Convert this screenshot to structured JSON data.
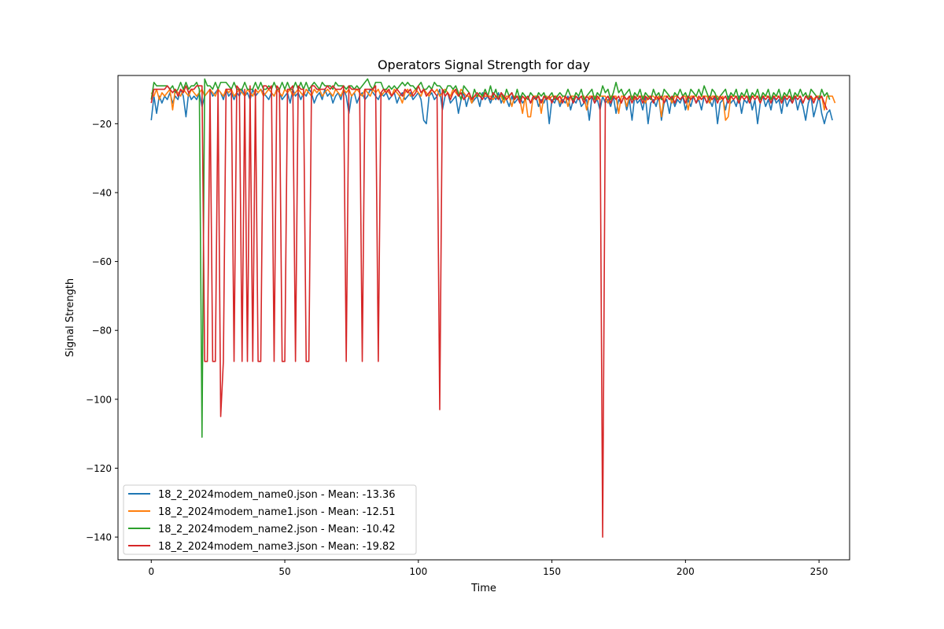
{
  "chart_data": {
    "type": "line",
    "title": "Operators Signal Strength for day",
    "xlabel": "Time",
    "ylabel": "Signal Strength",
    "xlim": [
      -12.45,
      261.45
    ],
    "ylim": [
      -146.6,
      -6.0
    ],
    "xticks": [
      0,
      50,
      100,
      150,
      200,
      250
    ],
    "yticks": [
      -140,
      -120,
      -100,
      -80,
      -60,
      -40,
      -20
    ],
    "grid": false,
    "legend_position": "lower-left",
    "series": [
      {
        "name": "18_2_2024modem_name0.json - Mean: -13.36",
        "color": "#1f77b4",
        "values": [
          -19,
          -12,
          -17,
          -12,
          -14,
          -12,
          -13,
          -11,
          -14,
          -12,
          -13,
          -10,
          -12,
          -18,
          -11,
          -13,
          -12,
          -13,
          -11,
          -15,
          -12,
          -11,
          -10,
          -12,
          -11,
          -10,
          -11,
          -13,
          -10,
          -12,
          -11,
          -13,
          -11,
          -12,
          -10,
          -12,
          -11,
          -13,
          -10,
          -12,
          -11,
          -10,
          -11,
          -12,
          -13,
          -11,
          -12,
          -10,
          -11,
          -13,
          -12,
          -11,
          -14,
          -10,
          -12,
          -11,
          -13,
          -11,
          -12,
          -10,
          -11,
          -14,
          -12,
          -11,
          -13,
          -10,
          -12,
          -11,
          -14,
          -12,
          -11,
          -13,
          -10,
          -12,
          -17,
          -12,
          -11,
          -14,
          -12,
          -11,
          -13,
          -12,
          -10,
          -11,
          -12,
          -13,
          -11,
          -12,
          -11,
          -13,
          -12,
          -11,
          -14,
          -12,
          -11,
          -13,
          -12,
          -11,
          -13,
          -12,
          -11,
          -13,
          -19,
          -20,
          -12,
          -11,
          -13,
          -12,
          -10,
          -16,
          -12,
          -11,
          -14,
          -13,
          -12,
          -17,
          -13,
          -11,
          -15,
          -12,
          -14,
          -13,
          -12,
          -15,
          -11,
          -13,
          -12,
          -14,
          -12,
          -13,
          -11,
          -14,
          -12,
          -13,
          -15,
          -12,
          -14,
          -13,
          -12,
          -14,
          -13,
          -12,
          -14,
          -13,
          -12,
          -15,
          -13,
          -14,
          -12,
          -20,
          -13,
          -14,
          -12,
          -15,
          -13,
          -14,
          -12,
          -16,
          -13,
          -14,
          -12,
          -15,
          -14,
          -13,
          -19,
          -12,
          -14,
          -13,
          -16,
          -12,
          -14,
          -13,
          -15,
          -12,
          -17,
          -13,
          -14,
          -12,
          -16,
          -13,
          -19,
          -12,
          -14,
          -13,
          -16,
          -12,
          -20,
          -14,
          -13,
          -15,
          -12,
          -19,
          -14,
          -13,
          -17,
          -12,
          -15,
          -13,
          -14,
          -12,
          -16,
          -13,
          -15,
          -12,
          -14,
          -13,
          -16,
          -12,
          -14,
          -13,
          -15,
          -12,
          -20,
          -14,
          -13,
          -16,
          -12,
          -14,
          -13,
          -15,
          -12,
          -17,
          -13,
          -14,
          -12,
          -16,
          -13,
          -20,
          -14,
          -12,
          -15,
          -13,
          -16,
          -12,
          -14,
          -13,
          -17,
          -12,
          -15,
          -13,
          -14,
          -12,
          -16,
          -13,
          -15,
          -19,
          -14,
          -12,
          -18,
          -15,
          -12,
          -17,
          -20,
          -17,
          -16,
          -19
        ]
      },
      {
        "name": "18_2_2024modem_name1.json - Mean: -12.51",
        "color": "#ff7f0e",
        "values": [
          -11,
          -12,
          -10,
          -13,
          -11,
          -12,
          -11,
          -10,
          -16,
          -10,
          -11,
          -12,
          -10,
          -11,
          -12,
          -10,
          -11,
          -12,
          -11,
          -10,
          -12,
          -11,
          -10,
          -11,
          -12,
          -10,
          -11,
          -12,
          -10,
          -11,
          -10,
          -12,
          -11,
          -10,
          -11,
          -12,
          -10,
          -11,
          -12,
          -10,
          -11,
          -10,
          -12,
          -11,
          -10,
          -11,
          -12,
          -10,
          -11,
          -12,
          -10,
          -11,
          -10,
          -12,
          -11,
          -10,
          -11,
          -12,
          -10,
          -11,
          -12,
          -10,
          -11,
          -10,
          -12,
          -11,
          -10,
          -11,
          -12,
          -10,
          -11,
          -12,
          -10,
          -11,
          -10,
          -12,
          -11,
          -10,
          -11,
          -12,
          -10,
          -11,
          -12,
          -10,
          -11,
          -10,
          -12,
          -11,
          -10,
          -11,
          -12,
          -10,
          -11,
          -12,
          -14,
          -11,
          -10,
          -12,
          -11,
          -10,
          -11,
          -12,
          -10,
          -11,
          -12,
          -10,
          -11,
          -10,
          -12,
          -11,
          -10,
          -11,
          -12,
          -10,
          -11,
          -12,
          -10,
          -11,
          -12,
          -12,
          -14,
          -12,
          -12,
          -12,
          -12,
          -12,
          -12,
          -12,
          -13,
          -12,
          -12,
          -12,
          -14,
          -12,
          -12,
          -15,
          -12,
          -12,
          -13,
          -17,
          -12,
          -18,
          -18,
          -12,
          -12,
          -12,
          -17,
          -12,
          -12,
          -13,
          -12,
          -12,
          -12,
          -14,
          -12,
          -12,
          -15,
          -12,
          -12,
          -12,
          -13,
          -12,
          -12,
          -16,
          -12,
          -12,
          -12,
          -13,
          -12,
          -12,
          -12,
          -14,
          -12,
          -12,
          -12,
          -17,
          -12,
          -12,
          -15,
          -12,
          -12,
          -13,
          -12,
          -12,
          -12,
          -14,
          -12,
          -12,
          -12,
          -13,
          -12,
          -18,
          -12,
          -12,
          -12,
          -14,
          -12,
          -12,
          -13,
          -12,
          -12,
          -16,
          -12,
          -12,
          -12,
          -13,
          -12,
          -12,
          -12,
          -14,
          -12,
          -12,
          -12,
          -13,
          -12,
          -19,
          -18,
          -12,
          -12,
          -12,
          -14,
          -12,
          -12,
          -12,
          -13,
          -12,
          -12,
          -12,
          -14,
          -12,
          -12,
          -12,
          -13,
          -12,
          -12,
          -12,
          -14,
          -12,
          -12,
          -12,
          -13,
          -12,
          -12,
          -12,
          -14,
          -12,
          -12,
          -12,
          -13,
          -12,
          -12,
          -12,
          -16,
          -12,
          -12,
          -12,
          -14
        ]
      },
      {
        "name": "18_2_2024modem_name2.json - Mean: -10.42",
        "color": "#2ca02c",
        "values": [
          -13,
          -8,
          -9,
          -9,
          -9,
          -9,
          -9,
          -10,
          -9,
          -11,
          -10,
          -8,
          -10,
          -8,
          -10,
          -9,
          -9,
          -8,
          -10,
          -111,
          -7,
          -9,
          -9,
          -10,
          -8,
          -10,
          -8,
          -8,
          -8,
          -9,
          -10,
          -8,
          -10,
          -10,
          -10,
          -8,
          -10,
          -10,
          -10,
          -8,
          -10,
          -8,
          -10,
          -10,
          -9,
          -10,
          -8,
          -10,
          -10,
          -8,
          -10,
          -8,
          -10,
          -10,
          -8,
          -10,
          -8,
          -10,
          -8,
          -10,
          -9,
          -8,
          -9,
          -10,
          -8,
          -9,
          -9,
          -9,
          -10,
          -8,
          -9,
          -9,
          -9,
          -10,
          -9,
          -9,
          -10,
          -9,
          -10,
          -9,
          -8,
          -7,
          -9,
          -10,
          -8,
          -8,
          -8,
          -10,
          -10,
          -9,
          -10,
          -9,
          -10,
          -9,
          -8,
          -9,
          -8,
          -9,
          -9,
          -10,
          -9,
          -8,
          -10,
          -10,
          -9,
          -10,
          -8,
          -9,
          -9,
          -10,
          -11,
          -9,
          -9,
          -10,
          -9,
          -11,
          -13,
          -9,
          -10,
          -11,
          -13,
          -10,
          -12,
          -11,
          -12,
          -10,
          -12,
          -9,
          -12,
          -10,
          -13,
          -11,
          -13,
          -10,
          -12,
          -11,
          -13,
          -10,
          -13,
          -11,
          -12,
          -13,
          -11,
          -12,
          -13,
          -11,
          -12,
          -11,
          -13,
          -12,
          -11,
          -13,
          -12,
          -11,
          -12,
          -12,
          -10,
          -12,
          -13,
          -11,
          -12,
          -10,
          -13,
          -12,
          -11,
          -10,
          -13,
          -11,
          -12,
          -9,
          -11,
          -10,
          -13,
          -11,
          -8,
          -11,
          -10,
          -12,
          -11,
          -10,
          -13,
          -11,
          -12,
          -10,
          -13,
          -11,
          -12,
          -13,
          -10,
          -12,
          -11,
          -13,
          -10,
          -11,
          -12,
          -13,
          -11,
          -12,
          -10,
          -12,
          -11,
          -13,
          -10,
          -11,
          -12,
          -10,
          -12,
          -9,
          -11,
          -13,
          -10,
          -11,
          -13,
          -12,
          -11,
          -10,
          -13,
          -11,
          -12,
          -10,
          -13,
          -11,
          -12,
          -10,
          -13,
          -11,
          -12,
          -10,
          -13,
          -11,
          -12,
          -10,
          -13,
          -11,
          -12,
          -10,
          -13,
          -11,
          -12,
          -10,
          -13,
          -11,
          -12,
          -10,
          -12,
          -11,
          -13,
          -10,
          -11,
          -12,
          -13,
          -10,
          -12,
          -11,
          -13
        ]
      },
      {
        "name": "18_2_2024modem_name3.json - Mean: -19.82",
        "color": "#d62728",
        "values": [
          -14,
          -10,
          -10,
          -10,
          -10,
          -10,
          -9,
          -10,
          -11,
          -10,
          -12,
          -10,
          -11,
          -9,
          -11,
          -10,
          -10,
          -9,
          -9,
          -9,
          -89,
          -89,
          -10,
          -89,
          -89,
          -10,
          -105,
          -89,
          -10,
          -10,
          -10,
          -89,
          -9,
          -10,
          -89,
          -10,
          -89,
          -9,
          -89,
          -10,
          -89,
          -89,
          -9,
          -9,
          -10,
          -9,
          -89,
          -9,
          -10,
          -89,
          -89,
          -10,
          -10,
          -9,
          -89,
          -9,
          -10,
          -10,
          -89,
          -89,
          -9,
          -9,
          -10,
          -10,
          -10,
          -10,
          -9,
          -10,
          -9,
          -10,
          -10,
          -10,
          -9,
          -89,
          -9,
          -10,
          -10,
          -10,
          -10,
          -89,
          -10,
          -10,
          -10,
          -10,
          -9,
          -89,
          -11,
          -10,
          -11,
          -10,
          -12,
          -11,
          -10,
          -11,
          -12,
          -10,
          -11,
          -10,
          -12,
          -11,
          -9,
          -11,
          -10,
          -12,
          -11,
          -10,
          -11,
          -12,
          -103,
          -10,
          -12,
          -11,
          -13,
          -11,
          -10,
          -12,
          -11,
          -13,
          -12,
          -11,
          -13,
          -12,
          -11,
          -12,
          -13,
          -11,
          -12,
          -13,
          -11,
          -12,
          -13,
          -11,
          -12,
          -13,
          -12,
          -11,
          -13,
          -12,
          -14,
          -12,
          -13,
          -12,
          -14,
          -12,
          -13,
          -12,
          -14,
          -12,
          -13,
          -12,
          -14,
          -12,
          -13,
          -12,
          -14,
          -12,
          -13,
          -12,
          -14,
          -12,
          -13,
          -12,
          -14,
          -12,
          -13,
          -12,
          -14,
          -12,
          -13,
          -140,
          -13,
          -12,
          -14,
          -12,
          -13,
          -12,
          -14,
          -12,
          -13,
          -12,
          -14,
          -12,
          -13,
          -12,
          -14,
          -12,
          -13,
          -12,
          -14,
          -12,
          -13,
          -12,
          -14,
          -12,
          -13,
          -12,
          -14,
          -12,
          -13,
          -12,
          -14,
          -12,
          -13,
          -12,
          -14,
          -12,
          -13,
          -12,
          -14,
          -12,
          -13,
          -12,
          -14,
          -12,
          -13,
          -12,
          -14,
          -12,
          -13,
          -12,
          -14,
          -12,
          -13,
          -12,
          -14,
          -12,
          -13,
          -12,
          -14,
          -12,
          -13,
          -12,
          -14,
          -12,
          -13,
          -12,
          -14,
          -12,
          -13,
          -12,
          -14,
          -12,
          -13,
          -12,
          -14,
          -12,
          -13,
          -12,
          -14,
          -12,
          -13,
          -12,
          -14,
          -16
        ]
      }
    ]
  }
}
